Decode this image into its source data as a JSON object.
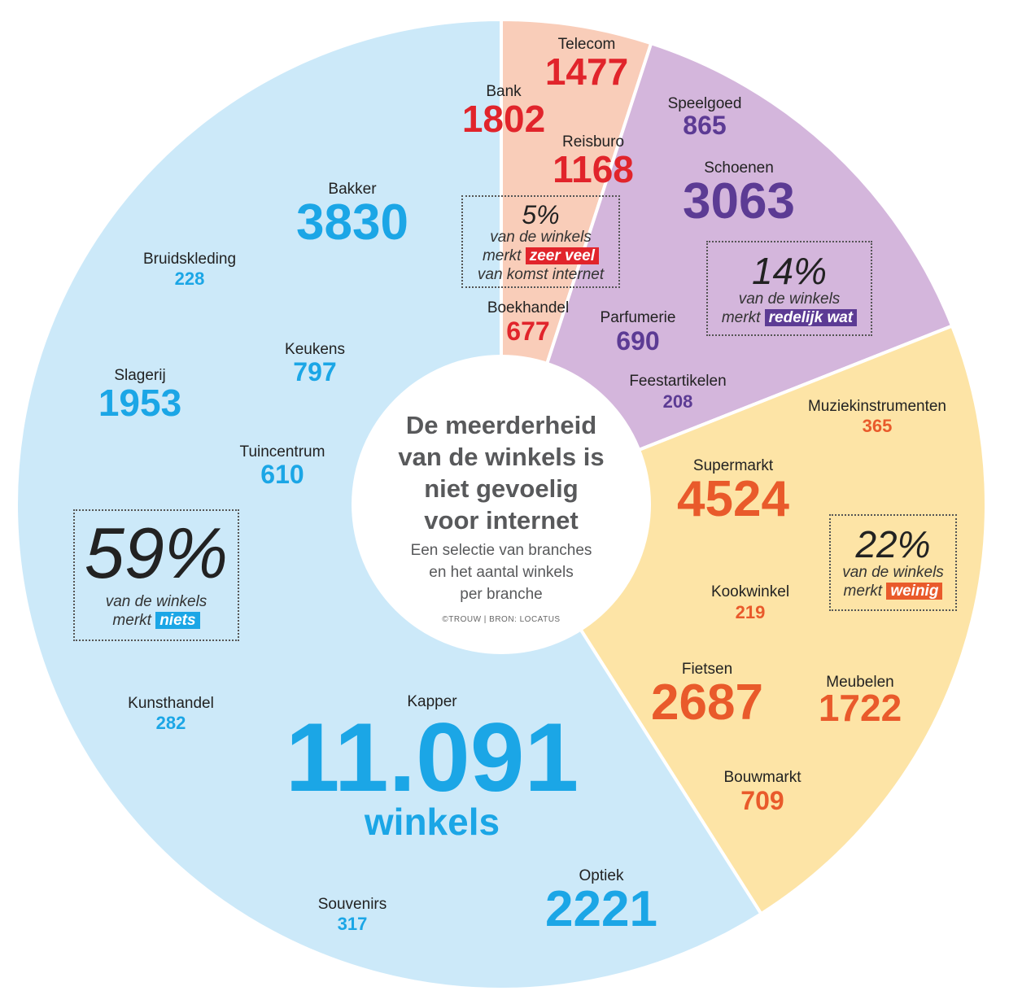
{
  "center": {
    "title_lines": [
      "De meerderheid",
      "van de winkels is",
      "niet  gevoelig",
      "voor internet"
    ],
    "subtitle_lines": [
      "Een selectie van branches",
      "en het aantal winkels",
      "per branche"
    ],
    "credit": "©TROUW  |  BRON: LOCATUS"
  },
  "colors": {
    "niets": "#cce9f9",
    "zeer_veel": "#f9cdb9",
    "redelijk_wat": "#d4b6dc",
    "weinig": "#fde4a6",
    "blue_text": "#1ba6e6",
    "red_text": "#e1242b",
    "purple_text": "#5c3b94",
    "orange_text": "#e95a2b",
    "label_text": "#222222"
  },
  "callouts": {
    "niets": {
      "pct": "59%",
      "line1": "van de winkels",
      "merkt": "merkt",
      "tag": "niets"
    },
    "zeer_veel": {
      "pct": "5%",
      "line1": "van de winkels",
      "merkt": "merkt",
      "tag": "zeer veel",
      "line3": "van komst internet"
    },
    "redelijk": {
      "pct": "14%",
      "line1": "van de winkels",
      "merkt": "merkt",
      "tag": "redelijk wat"
    },
    "weinig": {
      "pct": "22%",
      "line1": "van de winkels",
      "merkt": "merkt",
      "tag": "weinig"
    }
  },
  "chart_data": {
    "type": "pie",
    "sectors": [
      {
        "name": "zeer veel",
        "percent": 5
      },
      {
        "name": "redelijk wat",
        "percent": 14
      },
      {
        "name": "weinig",
        "percent": 22
      },
      {
        "name": "niets",
        "percent": 59
      }
    ],
    "branches": [
      {
        "name": "Telecom",
        "value": "1477",
        "group": "zeer veel"
      },
      {
        "name": "Bank",
        "value": "1802",
        "group": "zeer veel"
      },
      {
        "name": "Reisburo",
        "value": "1168",
        "group": "zeer veel"
      },
      {
        "name": "Boekhandel",
        "value": "677",
        "group": "zeer veel"
      },
      {
        "name": "Speelgoed",
        "value": "865",
        "group": "redelijk wat"
      },
      {
        "name": "Schoenen",
        "value": "3063",
        "group": "redelijk wat"
      },
      {
        "name": "Parfumerie",
        "value": "690",
        "group": "redelijk wat"
      },
      {
        "name": "Feestartikelen",
        "value": "208",
        "group": "redelijk wat"
      },
      {
        "name": "Muziekinstrumenten",
        "value": "365",
        "group": "weinig"
      },
      {
        "name": "Supermarkt",
        "value": "4524",
        "group": "weinig"
      },
      {
        "name": "Kookwinkel",
        "value": "219",
        "group": "weinig"
      },
      {
        "name": "Fietsen",
        "value": "2687",
        "group": "weinig"
      },
      {
        "name": "Meubelen",
        "value": "1722",
        "group": "weinig"
      },
      {
        "name": "Bouwmarkt",
        "value": "709",
        "group": "weinig"
      },
      {
        "name": "Bakker",
        "value": "3830",
        "group": "niets"
      },
      {
        "name": "Bruidskleding",
        "value": "228",
        "group": "niets"
      },
      {
        "name": "Keukens",
        "value": "797",
        "group": "niets"
      },
      {
        "name": "Slagerij",
        "value": "1953",
        "group": "niets"
      },
      {
        "name": "Tuincentrum",
        "value": "610",
        "group": "niets"
      },
      {
        "name": "Kunsthandel",
        "value": "282",
        "group": "niets"
      },
      {
        "name": "Kapper",
        "value": "11.091",
        "unit": "winkels",
        "group": "niets"
      },
      {
        "name": "Souvenirs",
        "value": "317",
        "group": "niets"
      },
      {
        "name": "Optiek",
        "value": "2221",
        "group": "niets"
      }
    ]
  }
}
